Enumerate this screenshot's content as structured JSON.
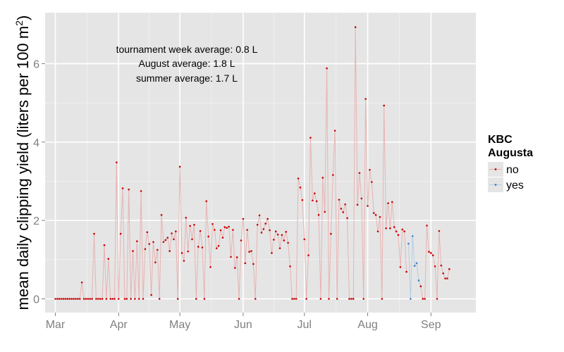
{
  "chart_data": {
    "type": "line",
    "ylabel": "mean daily clipping yield (liters per 100 m",
    "ylabel_sup": "2",
    "ylabel_close": ")",
    "ylim": [
      -0.35,
      7.3
    ],
    "y_ticks": [
      0,
      2,
      4,
      6
    ],
    "x_ticks": [
      {
        "label": "Mar",
        "day": 0
      },
      {
        "label": "Apr",
        "day": 31
      },
      {
        "label": "May",
        "day": 61
      },
      {
        "label": "Jun",
        "day": 92
      },
      {
        "label": "Jul",
        "day": 122
      },
      {
        "label": "Aug",
        "day": 153
      },
      {
        "label": "Sep",
        "day": 184
      }
    ],
    "xlim": [
      -5,
      206
    ],
    "grid": true,
    "annotations": [
      "tournament week average: 0.8 L",
      "August average: 1.8 L",
      "summer average: 1.7 L"
    ],
    "legend": {
      "title_line1": "KBC",
      "title_line2": "Augusta",
      "placement": "right",
      "entries": [
        {
          "name": "no",
          "color": "#cc0000",
          "line_color": "#e8b3b3"
        },
        {
          "name": "yes",
          "color": "#3d7ebf",
          "line_color": "#b6cde4"
        }
      ]
    },
    "series": [
      {
        "name": "no",
        "color": "#cc0000",
        "line_color": "#e8b3b3",
        "points": [
          [
            0,
            0
          ],
          [
            1,
            0
          ],
          [
            2,
            0
          ],
          [
            3,
            0
          ],
          [
            4,
            0
          ],
          [
            5,
            0
          ],
          [
            6,
            0
          ],
          [
            7,
            0
          ],
          [
            8,
            0
          ],
          [
            9,
            0
          ],
          [
            10,
            0
          ],
          [
            11,
            0
          ],
          [
            12,
            0
          ],
          [
            13,
            0.42
          ],
          [
            14,
            0
          ],
          [
            15,
            0
          ],
          [
            16,
            0
          ],
          [
            17,
            0
          ],
          [
            18,
            0
          ],
          [
            19,
            1.66
          ],
          [
            20,
            0
          ],
          [
            21,
            0
          ],
          [
            22,
            0
          ],
          [
            23,
            0
          ],
          [
            24,
            1.37
          ],
          [
            25,
            0
          ],
          [
            26,
            1.02
          ],
          [
            27,
            0
          ],
          [
            28,
            0
          ],
          [
            29,
            0
          ],
          [
            30,
            3.48
          ],
          [
            31,
            0
          ],
          [
            32,
            1.66
          ],
          [
            33,
            2.82
          ],
          [
            34,
            0
          ],
          [
            35,
            0
          ],
          [
            36,
            2.79
          ],
          [
            37,
            0
          ],
          [
            38,
            1.22
          ],
          [
            39,
            0
          ],
          [
            40,
            1.47
          ],
          [
            41,
            0
          ],
          [
            42,
            2.75
          ],
          [
            43,
            0
          ],
          [
            44,
            1.27
          ],
          [
            45,
            1.7
          ],
          [
            46,
            1.4
          ],
          [
            47,
            0.1
          ],
          [
            48,
            1.45
          ],
          [
            49,
            0.93
          ],
          [
            50,
            1.25
          ],
          [
            51,
            0
          ],
          [
            52,
            2.14
          ],
          [
            53,
            1.45
          ],
          [
            54,
            1.5
          ],
          [
            55,
            1.56
          ],
          [
            56,
            1.22
          ],
          [
            57,
            1.67
          ],
          [
            58,
            1.52
          ],
          [
            59,
            1.72
          ],
          [
            60,
            0
          ],
          [
            61,
            3.37
          ],
          [
            62,
            1.17
          ],
          [
            63,
            0.97
          ],
          [
            64,
            2.07
          ],
          [
            65,
            1.21
          ],
          [
            66,
            1.86
          ],
          [
            67,
            1.52
          ],
          [
            68,
            1.89
          ],
          [
            69,
            0
          ],
          [
            70,
            1.33
          ],
          [
            71,
            1.73
          ],
          [
            72,
            1.31
          ],
          [
            73,
            0
          ],
          [
            74,
            2.49
          ],
          [
            75,
            1.59
          ],
          [
            76,
            0.81
          ],
          [
            77,
            1.91
          ],
          [
            78,
            1.76
          ],
          [
            79,
            1.29
          ],
          [
            80,
            1.35
          ],
          [
            81,
            1.75
          ],
          [
            82,
            1.56
          ],
          [
            83,
            1.83
          ],
          [
            84,
            1.81
          ],
          [
            85,
            1.84
          ],
          [
            86,
            1.07
          ],
          [
            87,
            1.76
          ],
          [
            88,
            0.79
          ],
          [
            89,
            1.06
          ],
          [
            90,
            0
          ],
          [
            91,
            1.49
          ],
          [
            92,
            2.04
          ],
          [
            93,
            0.91
          ],
          [
            94,
            1.76
          ],
          [
            95,
            1.2
          ],
          [
            96,
            1.22
          ],
          [
            97,
            0.89
          ],
          [
            98,
            0
          ],
          [
            99,
            1.89
          ],
          [
            100,
            2.13
          ],
          [
            101,
            1.69
          ],
          [
            102,
            1.78
          ],
          [
            103,
            1.92
          ],
          [
            104,
            2.04
          ],
          [
            105,
            1.75
          ],
          [
            106,
            1.17
          ],
          [
            107,
            1.51
          ],
          [
            108,
            1.72
          ],
          [
            109,
            1.64
          ],
          [
            110,
            1.29
          ],
          [
            111,
            1.63
          ],
          [
            112,
            1.49
          ],
          [
            113,
            1.71
          ],
          [
            114,
            1.43
          ],
          [
            115,
            0.83
          ],
          [
            116,
            0
          ],
          [
            117,
            0
          ],
          [
            118,
            0
          ],
          [
            119,
            3.07
          ],
          [
            120,
            2.84
          ],
          [
            121,
            2.52
          ],
          [
            122,
            1.52
          ],
          [
            123,
            0
          ],
          [
            124,
            1.11
          ],
          [
            125,
            4.11
          ],
          [
            126,
            2.51
          ],
          [
            127,
            2.69
          ],
          [
            128,
            2.49
          ],
          [
            129,
            2.14
          ],
          [
            130,
            0
          ],
          [
            131,
            3.09
          ],
          [
            132,
            2.22
          ],
          [
            133,
            5.88
          ],
          [
            134,
            0
          ],
          [
            135,
            1.66
          ],
          [
            136,
            3.16
          ],
          [
            137,
            4.29
          ],
          [
            138,
            0
          ],
          [
            139,
            2.53
          ],
          [
            140,
            2.3
          ],
          [
            141,
            2.21
          ],
          [
            142,
            2.41
          ],
          [
            143,
            2.06
          ],
          [
            144,
            0
          ],
          [
            145,
            0
          ],
          [
            146,
            0
          ],
          [
            147,
            6.93
          ],
          [
            148,
            2.4
          ],
          [
            149,
            3.21
          ],
          [
            150,
            2.56
          ],
          [
            151,
            0
          ],
          [
            152,
            5.1
          ],
          [
            153,
            2.37
          ],
          [
            154,
            3.29
          ],
          [
            155,
            2.98
          ],
          [
            156,
            2.19
          ],
          [
            157,
            2.14
          ],
          [
            158,
            1.72
          ],
          [
            159,
            2.09
          ],
          [
            160,
            0
          ],
          [
            161,
            4.93
          ],
          [
            162,
            1.8
          ],
          [
            163,
            2.44
          ],
          [
            164,
            1.8
          ],
          [
            165,
            2.47
          ],
          [
            166,
            1.83
          ],
          [
            167,
            1.72
          ],
          [
            168,
            1.63
          ],
          [
            169,
            0.81
          ],
          [
            170,
            1.77
          ],
          [
            171,
            1.72
          ],
          [
            172,
            0.69
          ]
        ]
      },
      {
        "name": "yes",
        "color": "#3d7ebf",
        "line_color": "#b6cde4",
        "points": [
          [
            173,
            1.41
          ],
          [
            174,
            0
          ],
          [
            175,
            1.6
          ],
          [
            176,
            0.84
          ],
          [
            177,
            0.91
          ],
          [
            178,
            0.47
          ],
          [
            179,
            0.32
          ]
        ]
      },
      {
        "name": "no",
        "color": "#cc0000",
        "line_color": "#e8b3b3",
        "points": [
          [
            179,
            0.32
          ],
          [
            180,
            0
          ],
          [
            181,
            0
          ],
          [
            182,
            1.87
          ],
          [
            183,
            1.2
          ],
          [
            184,
            1.17
          ],
          [
            185,
            1.11
          ],
          [
            186,
            0.83
          ],
          [
            187,
            0
          ],
          [
            188,
            1.73
          ],
          [
            189,
            0.85
          ],
          [
            190,
            0.65
          ],
          [
            191,
            0.52
          ],
          [
            192,
            0.52
          ],
          [
            193,
            0.76
          ]
        ]
      }
    ]
  }
}
